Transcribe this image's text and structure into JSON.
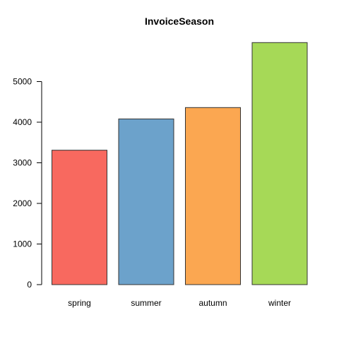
{
  "chart_data": {
    "type": "bar",
    "title": "InvoiceSeason",
    "xlabel": "",
    "ylabel": "",
    "categories": [
      "spring",
      "summer",
      "autumn",
      "winter"
    ],
    "values": [
      3310,
      4080,
      4360,
      5960
    ],
    "colors": [
      "#F8695F",
      "#6CA2CB",
      "#FBA751",
      "#A6D957"
    ],
    "yticks": [
      0,
      1000,
      2000,
      3000,
      4000,
      5000
    ],
    "ylim": [
      0,
      6000
    ],
    "grid": false,
    "legend": "none"
  }
}
